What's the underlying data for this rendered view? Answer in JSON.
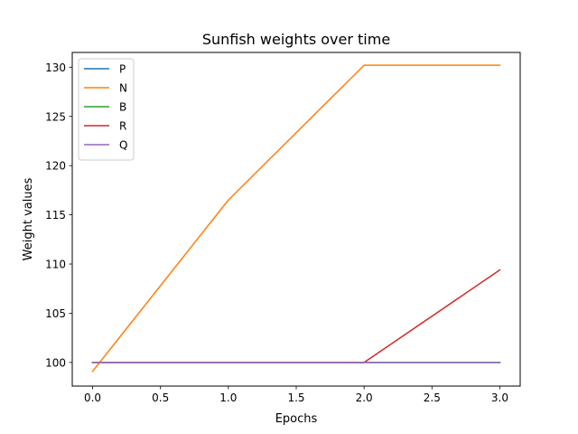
{
  "chart_data": {
    "type": "line",
    "title": "Sunfish weights over time",
    "xlabel": "Epochs",
    "ylabel": "Weight values",
    "xlim": [
      -0.15,
      3.15
    ],
    "ylim": [
      97.6,
      131.5
    ],
    "x_ticks": [
      0.0,
      0.5,
      1.0,
      1.5,
      2.0,
      2.5,
      3.0
    ],
    "x_tick_labels": [
      "0.0",
      "0.5",
      "1.0",
      "1.5",
      "2.0",
      "2.5",
      "3.0"
    ],
    "y_ticks": [
      100,
      105,
      110,
      115,
      120,
      125,
      130
    ],
    "y_tick_labels": [
      "100",
      "105",
      "110",
      "115",
      "120",
      "125",
      "130"
    ],
    "grid": false,
    "legend_position": "top-left",
    "x": [
      0,
      1,
      2,
      3
    ],
    "series": [
      {
        "name": "P",
        "color": "#1f77b4",
        "values": [
          100,
          100,
          100,
          100
        ]
      },
      {
        "name": "N",
        "color": "#ff7f0e",
        "values": [
          99.1,
          116.5,
          130.2,
          130.2
        ]
      },
      {
        "name": "B",
        "color": "#2ca02c",
        "values": [
          100,
          100,
          100,
          100
        ]
      },
      {
        "name": "R",
        "color": "#d62728",
        "values": [
          100,
          100,
          100,
          109.4
        ]
      },
      {
        "name": "Q",
        "color": "#9467bd",
        "values": [
          100,
          100,
          100,
          100
        ]
      }
    ]
  }
}
